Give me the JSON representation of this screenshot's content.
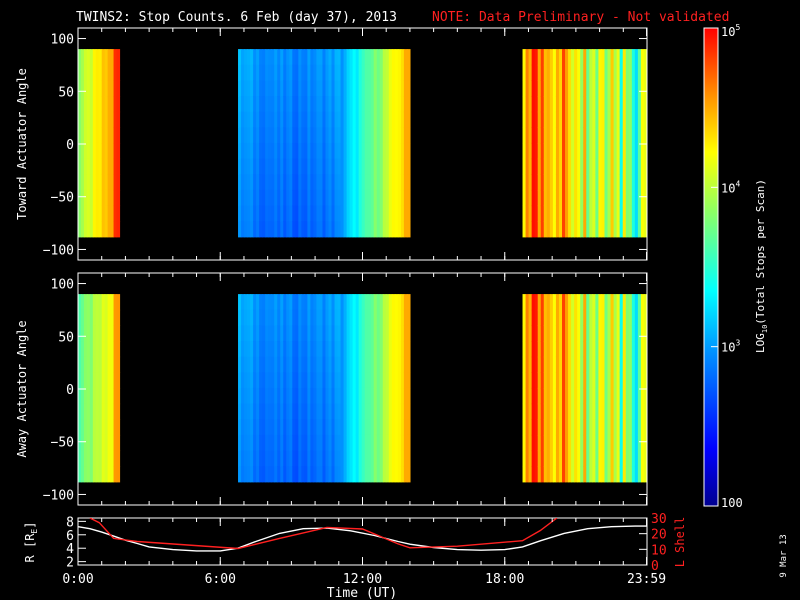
{
  "header": {
    "title": "TWINS2: Stop Counts.  6 Feb (day  37), 2013",
    "note": "NOTE: Data Preliminary - Not validated",
    "title_color": "#ffffff",
    "note_color": "#ff2020"
  },
  "stamp": "9 Mar 13",
  "chart_data": [
    {
      "type": "heatmap",
      "panel": "toward",
      "ylabel": "Toward Actuator Angle",
      "ylim": [
        -110,
        110
      ],
      "yticks": [
        "100",
        "50",
        "0",
        "−50",
        "−100"
      ],
      "ytick_values": [
        100,
        50,
        0,
        -50,
        -100
      ],
      "xlim": [
        0,
        24
      ],
      "data_bands": [
        {
          "start_hr": 0.0,
          "end_hr": 1.75,
          "profile": "dawn-warm"
        },
        {
          "start_hr": 6.75,
          "end_hr": 14.0,
          "profile": "midday-rise"
        },
        {
          "start_hr": 18.75,
          "end_hr": 24.0,
          "profile": "evening-striped"
        }
      ],
      "angle_range": [
        -88,
        90
      ]
    },
    {
      "type": "heatmap",
      "panel": "away",
      "ylabel": "Away Actuator Angle",
      "ylim": [
        -110,
        110
      ],
      "yticks": [
        "100",
        "50",
        "0",
        "−50",
        "−100"
      ],
      "ytick_values": [
        100,
        50,
        0,
        -50,
        -100
      ],
      "xlim": [
        0,
        24
      ],
      "data_bands": [
        {
          "start_hr": 0.0,
          "end_hr": 1.75,
          "profile": "dawn-cool"
        },
        {
          "start_hr": 6.75,
          "end_hr": 14.0,
          "profile": "midday-rise"
        },
        {
          "start_hr": 18.75,
          "end_hr": 24.0,
          "profile": "evening-striped"
        }
      ],
      "angle_range": [
        -88,
        90
      ]
    },
    {
      "type": "line",
      "panel": "orbit",
      "xlabel": "Time (UT)",
      "ylabel_left": "R [R",
      "ylabel_left_sub": "E",
      "ylabel_left_close": "]",
      "ylabel_right": "L Shell",
      "ylim_left": [
        1.5,
        8.5
      ],
      "yticks_left": [
        "8",
        "6",
        "4",
        "2"
      ],
      "ytick_values_left": [
        8,
        6,
        4,
        2
      ],
      "ylim_right": [
        0,
        30
      ],
      "yticks_right": [
        "30",
        "20",
        "10",
        "0"
      ],
      "ytick_values_right": [
        30,
        20,
        10,
        0
      ],
      "xticks": [
        "0:00",
        "6:00",
        "12:00",
        "18:00",
        "23:59"
      ],
      "xtick_values": [
        0,
        6,
        12,
        18,
        23.98
      ],
      "series": [
        {
          "axis": "left",
          "color": "#ffffff",
          "x": [
            0,
            0.5,
            1,
            1.5,
            2,
            2.5,
            3,
            4,
            5,
            6,
            6.75,
            7.5,
            8.5,
            9.5,
            10.5,
            11.5,
            12.5,
            13.5,
            14,
            15,
            16,
            17,
            18,
            18.75,
            19.5,
            20.5,
            21.5,
            22.5,
            23.5,
            23.98
          ],
          "y": [
            7.2,
            6.9,
            6.4,
            5.8,
            5.2,
            4.7,
            4.2,
            3.8,
            3.6,
            3.6,
            4.0,
            5.0,
            6.2,
            6.9,
            7.0,
            6.6,
            5.9,
            5.0,
            4.6,
            4.1,
            3.8,
            3.7,
            3.8,
            4.2,
            5.1,
            6.2,
            6.9,
            7.2,
            7.3,
            7.3
          ]
        },
        {
          "axis": "right",
          "color": "#ff2020",
          "x": [
            0.5,
            0.9,
            1.5,
            2.5,
            6.75,
            8.5,
            10.5,
            12,
            13.5,
            14,
            16,
            18.75,
            19.5,
            20.2
          ],
          "y": [
            30,
            27,
            17,
            15,
            10.5,
            17,
            24,
            23,
            13.5,
            11,
            12,
            15.5,
            22,
            30
          ]
        }
      ]
    }
  ],
  "colorbar": {
    "label_prefix": "LOG",
    "label_sub": "10",
    "label_rest": "(Total Stops per Scan)",
    "ticks": [
      {
        "base": "10",
        "exp": "5",
        "value": 100000
      },
      {
        "base": "10",
        "exp": "4",
        "value": 10000
      },
      {
        "base": "10",
        "exp": "3",
        "value": 1000
      },
      {
        "base": "100",
        "exp": "",
        "value": 100
      }
    ],
    "range": [
      100,
      100000
    ],
    "scale": "log"
  }
}
